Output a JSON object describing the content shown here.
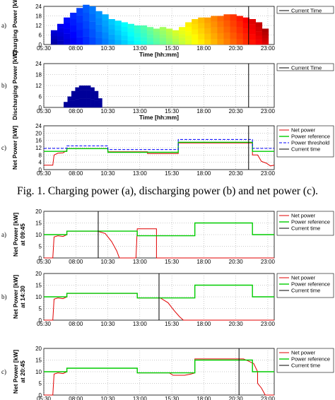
{
  "caption": "Fig. 1.   Charging power (a), discharging power (b) and net power (c).",
  "colors": {
    "net_power": "#e00000",
    "power_reference": "#00cc00",
    "power_threshold": "#0000ff",
    "current_time": "#000000",
    "discharge": "#000099"
  },
  "chart_data": [
    {
      "panel": "a)",
      "type": "heatmap",
      "ylabel": "Charging Power [kW]",
      "xlabel": "Time [hh:mm]",
      "ylim": [
        0,
        24
      ],
      "yticks": [
        0,
        6,
        12,
        18,
        24
      ],
      "xlim": [
        5.5,
        23.5
      ],
      "xticks": [
        "05:30",
        "08:00",
        "10:30",
        "13:00",
        "15:30",
        "18:00",
        "20:30",
        "23:00"
      ],
      "legend": [
        "Current Time"
      ],
      "legend_position": "top-right",
      "current_time": "21:30",
      "grid": true,
      "x": [
        6.3,
        6.8,
        7.3,
        7.8,
        8.3,
        8.8,
        9.3,
        9.8,
        10.3,
        10.8,
        11.3,
        11.8,
        12.3,
        12.8,
        13.3,
        13.8,
        14.3,
        14.8,
        15.3,
        15.8,
        16.3,
        16.8,
        17.3,
        17.8,
        18.3,
        18.8,
        19.3,
        19.8,
        20.3,
        20.8,
        21.3,
        21.8,
        22.3,
        22.8
      ],
      "values": [
        9,
        13,
        17,
        20,
        23,
        25,
        24,
        21,
        19,
        16,
        15,
        14,
        13,
        12,
        12,
        11,
        10,
        11,
        10,
        9,
        11,
        14,
        16,
        17,
        17,
        18,
        18,
        19,
        19,
        18,
        17,
        16,
        14,
        10
      ]
    },
    {
      "panel": "b)",
      "type": "heatmap",
      "ylabel": "Discharging Power [kW]",
      "xlabel": "Time [hh:mm]",
      "ylim": [
        0,
        24
      ],
      "yticks": [
        0,
        6,
        12,
        18,
        24
      ],
      "xlim": [
        5.5,
        23.5
      ],
      "xticks": [
        "05:30",
        "08:00",
        "10:30",
        "13:00",
        "15:30",
        "18:00",
        "20:30",
        "23:00"
      ],
      "legend": [
        "Current Time"
      ],
      "legend_position": "top-right",
      "current_time": "21:30",
      "grid": true,
      "x": [
        7.2,
        7.5,
        7.8,
        8.1,
        8.4,
        8.7,
        9.0,
        9.3,
        9.6,
        9.9
      ],
      "values": [
        3,
        6,
        9,
        11,
        12,
        12,
        12,
        11,
        9,
        5
      ]
    },
    {
      "panel": "c)",
      "type": "line",
      "ylabel": "Net Power [kW]",
      "xlabel": "",
      "ylim": [
        0,
        24
      ],
      "yticks": [
        0,
        4,
        8,
        12,
        16,
        20,
        24
      ],
      "xlim": [
        5.5,
        23.5
      ],
      "xticks": [
        "05:30",
        "08:00",
        "10:30",
        "13:00",
        "15:30",
        "18:00",
        "20:30",
        "23:00"
      ],
      "legend": [
        "Net power",
        "Power reference",
        "Power threshold",
        "Current time"
      ],
      "legend_position": "top-right",
      "current_time": "21:30",
      "grid": true,
      "series": [
        {
          "name": "Net power",
          "x": [
            5.5,
            6.2,
            6.3,
            6.6,
            7.0,
            7.3,
            7.3,
            10.5,
            10.5,
            13.6,
            13.6,
            16.0,
            16.0,
            21.8,
            21.8,
            22.2,
            22.5,
            22.9,
            23.2,
            23.5
          ],
          "y": [
            2.4,
            2.4,
            8.0,
            9.0,
            9.2,
            10.5,
            11.5,
            11.5,
            9.8,
            9.8,
            8.8,
            8.8,
            14.6,
            14.6,
            8.0,
            8.0,
            4.5,
            3.5,
            2.0,
            2.4
          ]
        },
        {
          "name": "Power reference",
          "x": [
            5.5,
            7.3,
            7.3,
            10.5,
            10.5,
            16.0,
            16.0,
            21.8,
            21.8,
            23.5
          ],
          "y": [
            10.0,
            10.0,
            11.5,
            11.5,
            9.5,
            9.5,
            15.0,
            15.0,
            10.0,
            10.0
          ]
        },
        {
          "name": "Power threshold",
          "x": [
            5.5,
            7.3,
            7.3,
            10.5,
            10.5,
            16.0,
            16.0,
            21.8,
            21.8,
            23.5
          ],
          "y": [
            11.6,
            11.6,
            13.0,
            13.0,
            11.0,
            11.0,
            16.5,
            16.5,
            11.6,
            11.6
          ]
        }
      ]
    },
    {
      "panel": "a)",
      "type": "line",
      "ylabel": "Net Power [kW] at 09:45",
      "xlabel": "",
      "ylim": [
        0,
        20
      ],
      "yticks": [
        0,
        5,
        10,
        15,
        20
      ],
      "xlim": [
        5.5,
        23.5
      ],
      "xticks": [
        "05:30",
        "08:00",
        "10:30",
        "13:00",
        "15:30",
        "18:00",
        "20:30",
        "23:00"
      ],
      "legend": [
        "Net power",
        "Power reference",
        "Current time"
      ],
      "legend_position": "top-right",
      "current_time": "09:45",
      "grid": true,
      "series": [
        {
          "name": "Net power",
          "x": [
            5.5,
            6.2,
            6.3,
            6.6,
            7.0,
            7.3,
            7.3,
            9.7,
            10.3,
            10.8,
            11.2,
            11.4,
            12.7,
            12.8,
            14.3,
            14.3,
            23.5
          ],
          "y": [
            0,
            0,
            9,
            9.5,
            9.2,
            10,
            11.5,
            11.5,
            10.5,
            7,
            3,
            0,
            0,
            12.5,
            12.5,
            0,
            0
          ]
        },
        {
          "name": "Power reference",
          "x": [
            5.5,
            7.3,
            7.3,
            12.8,
            12.8,
            17.3,
            17.3,
            21.8,
            21.8,
            23.5
          ],
          "y": [
            10.0,
            10.0,
            11.5,
            11.5,
            9.5,
            9.5,
            15.0,
            15.0,
            10.0,
            10.0
          ]
        }
      ]
    },
    {
      "panel": "b)",
      "type": "line",
      "ylabel": "Net Power [kW] at 14:30",
      "xlabel": "",
      "ylim": [
        0,
        20
      ],
      "yticks": [
        0,
        5,
        10,
        15,
        20
      ],
      "xlim": [
        5.5,
        23.5
      ],
      "xticks": [
        "05:30",
        "08:00",
        "10:30",
        "13:00",
        "15:30",
        "18:00",
        "20:30",
        "23:00"
      ],
      "legend": [
        "Net power",
        "Power reference",
        "Current time"
      ],
      "legend_position": "top-right",
      "current_time": "14:30",
      "grid": true,
      "series": [
        {
          "name": "Net power",
          "x": [
            5.5,
            6.2,
            6.3,
            6.6,
            7.0,
            7.3,
            7.3,
            12.8,
            12.8,
            14.6,
            15.2,
            15.7,
            16.1,
            16.4,
            23.5
          ],
          "y": [
            0,
            0,
            9,
            9.5,
            9.2,
            10,
            11.5,
            11.5,
            9.5,
            9.5,
            7.5,
            4,
            1.5,
            0,
            0
          ]
        },
        {
          "name": "Power reference",
          "x": [
            5.5,
            7.3,
            7.3,
            12.8,
            12.8,
            17.3,
            17.3,
            21.8,
            21.8,
            23.5
          ],
          "y": [
            10.0,
            10.0,
            11.5,
            11.5,
            9.5,
            9.5,
            15.0,
            15.0,
            10.0,
            10.0
          ]
        }
      ]
    },
    {
      "panel": "c)",
      "type": "line",
      "ylabel": "Net Power [kW] at 20:45",
      "xlabel": "",
      "ylim": [
        0,
        20
      ],
      "yticks": [
        0,
        5,
        10,
        15,
        20
      ],
      "xlim": [
        5.5,
        23.5
      ],
      "xticks": [
        "05:30",
        "08:00",
        "10:30",
        "13:00",
        "15:30",
        "18:00",
        "20:30",
        "23:00"
      ],
      "legend": [
        "Net power",
        "Power reference",
        "Current time"
      ],
      "legend_position": "top-right",
      "current_time": "20:45",
      "grid": true,
      "series": [
        {
          "name": "Net power",
          "x": [
            5.5,
            6.2,
            6.3,
            6.6,
            7.0,
            7.3,
            7.3,
            12.8,
            12.8,
            15.3,
            15.6,
            16.5,
            17.0,
            17.3,
            17.3,
            21.1,
            21.5,
            21.9,
            22.2,
            22.2,
            22.5,
            22.8,
            23.5
          ],
          "y": [
            0,
            0,
            9,
            9.5,
            9.2,
            10,
            11.5,
            11.5,
            9.5,
            9.5,
            8.5,
            8.5,
            9.0,
            9.5,
            15.5,
            15.5,
            14.5,
            13.5,
            10,
            5,
            3,
            0,
            0
          ]
        },
        {
          "name": "Power reference",
          "x": [
            5.5,
            7.3,
            7.3,
            12.8,
            12.8,
            17.3,
            17.3,
            21.8,
            21.8,
            23.5
          ],
          "y": [
            10.0,
            10.0,
            11.5,
            11.5,
            9.5,
            9.5,
            15.0,
            15.0,
            10.0,
            10.0
          ]
        }
      ]
    }
  ]
}
